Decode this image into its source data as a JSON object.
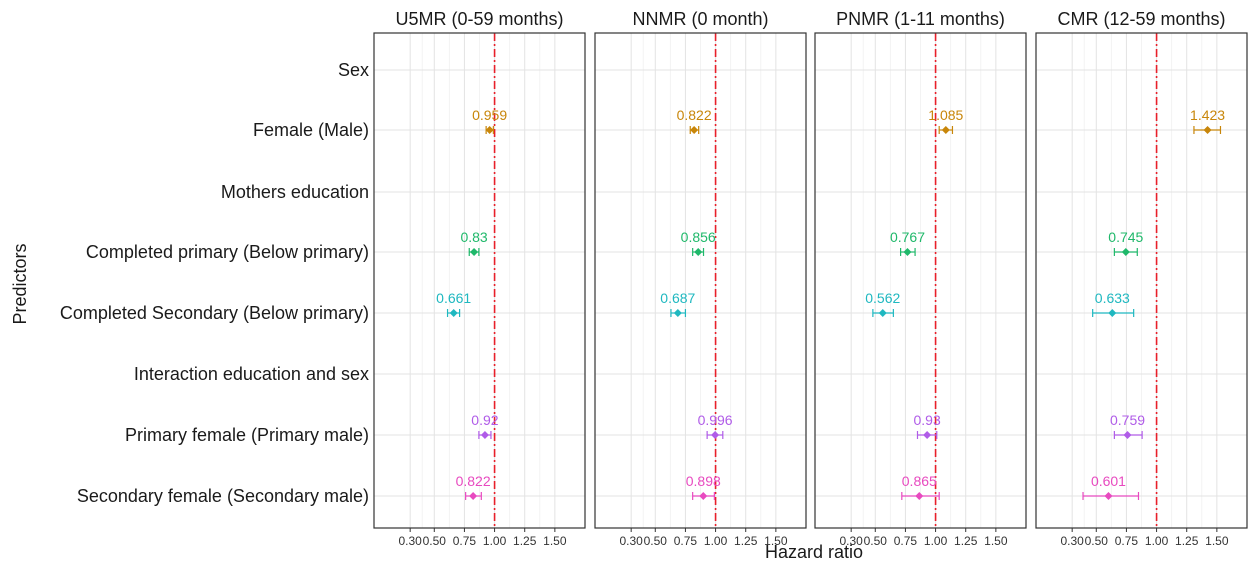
{
  "chart_data": {
    "type": "forest",
    "xlabel": "Hazard ratio",
    "ylabel": "Predictors",
    "x_ticks": [
      "0.30",
      "0.50",
      "0.75",
      "1.00",
      "1.25",
      "1.50"
    ],
    "x_tick_values": [
      0.3,
      0.5,
      0.75,
      1.0,
      1.25,
      1.5
    ],
    "xlim": [
      0.0,
      1.75
    ],
    "reference_line": 1.0,
    "reference_line_color": "#e8202a",
    "grid": true,
    "rows": [
      "Sex",
      "Female (Male)",
      "Mothers education",
      "Completed primary (Below primary)",
      "Completed Secondary (Below primary)",
      "Interaction education and sex",
      "Primary female (Primary male)",
      "Secondary female (Secondary male)"
    ],
    "row_colors": [
      "",
      "#c8860a",
      "",
      "#1fb86a",
      "#1fb8c0",
      "",
      "#b05ce8",
      "#e84ac0"
    ],
    "panels": [
      {
        "title": "U5MR (0-59 months)",
        "points": [
          {
            "row": 1,
            "label": "0.959",
            "est": 0.959,
            "lo": 0.93,
            "hi": 0.99
          },
          {
            "row": 3,
            "label": "0.83",
            "est": 0.83,
            "lo": 0.79,
            "hi": 0.87
          },
          {
            "row": 4,
            "label": "0.661",
            "est": 0.661,
            "lo": 0.61,
            "hi": 0.71
          },
          {
            "row": 6,
            "label": "0.92",
            "est": 0.92,
            "lo": 0.87,
            "hi": 0.97
          },
          {
            "row": 7,
            "label": "0.822",
            "est": 0.822,
            "lo": 0.76,
            "hi": 0.89
          }
        ]
      },
      {
        "title": "NNMR (0 month)",
        "points": [
          {
            "row": 1,
            "label": "0.822",
            "est": 0.822,
            "lo": 0.79,
            "hi": 0.86
          },
          {
            "row": 3,
            "label": "0.856",
            "est": 0.856,
            "lo": 0.81,
            "hi": 0.9
          },
          {
            "row": 4,
            "label": "0.687",
            "est": 0.687,
            "lo": 0.63,
            "hi": 0.75
          },
          {
            "row": 6,
            "label": "0.996",
            "est": 0.996,
            "lo": 0.93,
            "hi": 1.06
          },
          {
            "row": 7,
            "label": "0.898",
            "est": 0.898,
            "lo": 0.81,
            "hi": 0.99
          }
        ]
      },
      {
        "title": "PNMR (1-11 months)",
        "points": [
          {
            "row": 1,
            "label": "1.085",
            "est": 1.085,
            "lo": 1.03,
            "hi": 1.14
          },
          {
            "row": 3,
            "label": "0.767",
            "est": 0.767,
            "lo": 0.71,
            "hi": 0.83
          },
          {
            "row": 4,
            "label": "0.562",
            "est": 0.562,
            "lo": 0.48,
            "hi": 0.65
          },
          {
            "row": 6,
            "label": "0.93",
            "est": 0.93,
            "lo": 0.85,
            "hi": 1.01
          },
          {
            "row": 7,
            "label": "0.865",
            "est": 0.865,
            "lo": 0.72,
            "hi": 1.03
          }
        ]
      },
      {
        "title": "CMR (12-59 months)",
        "points": [
          {
            "row": 1,
            "label": "1.423",
            "est": 1.423,
            "lo": 1.31,
            "hi": 1.53
          },
          {
            "row": 3,
            "label": "0.745",
            "est": 0.745,
            "lo": 0.65,
            "hi": 0.84
          },
          {
            "row": 4,
            "label": "0.633",
            "est": 0.633,
            "lo": 0.47,
            "hi": 0.81
          },
          {
            "row": 6,
            "label": "0.759",
            "est": 0.759,
            "lo": 0.65,
            "hi": 0.88
          },
          {
            "row": 7,
            "label": "0.601",
            "est": 0.601,
            "lo": 0.39,
            "hi": 0.85
          }
        ]
      }
    ]
  }
}
